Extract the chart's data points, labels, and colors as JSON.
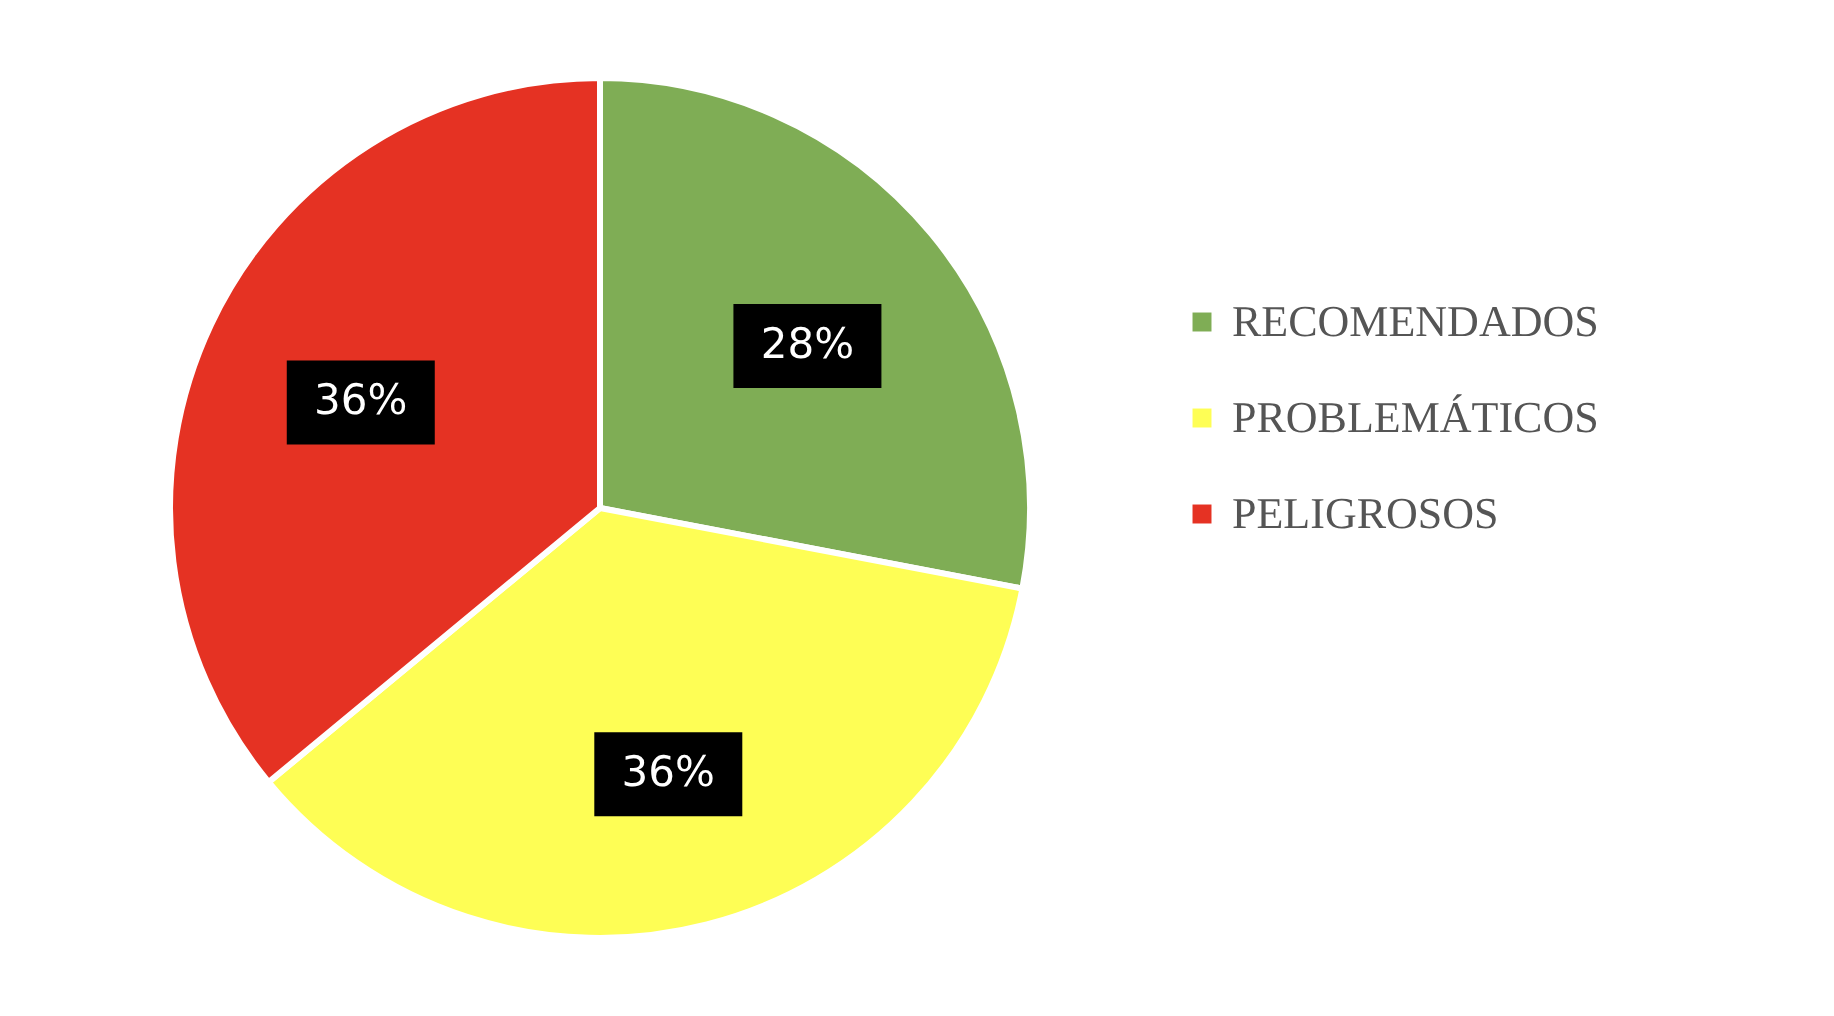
{
  "chart_data": {
    "type": "pie",
    "categories": [
      "RECOMENDADOS",
      "PROBLEMÁTICOS",
      "PELIGROSOS"
    ],
    "values": [
      28,
      36,
      36
    ],
    "colors": [
      "#7fad55",
      "#fefe55",
      "#e53223"
    ],
    "value_labels": [
      "28%",
      "36%",
      "36%"
    ],
    "legend": "right"
  }
}
